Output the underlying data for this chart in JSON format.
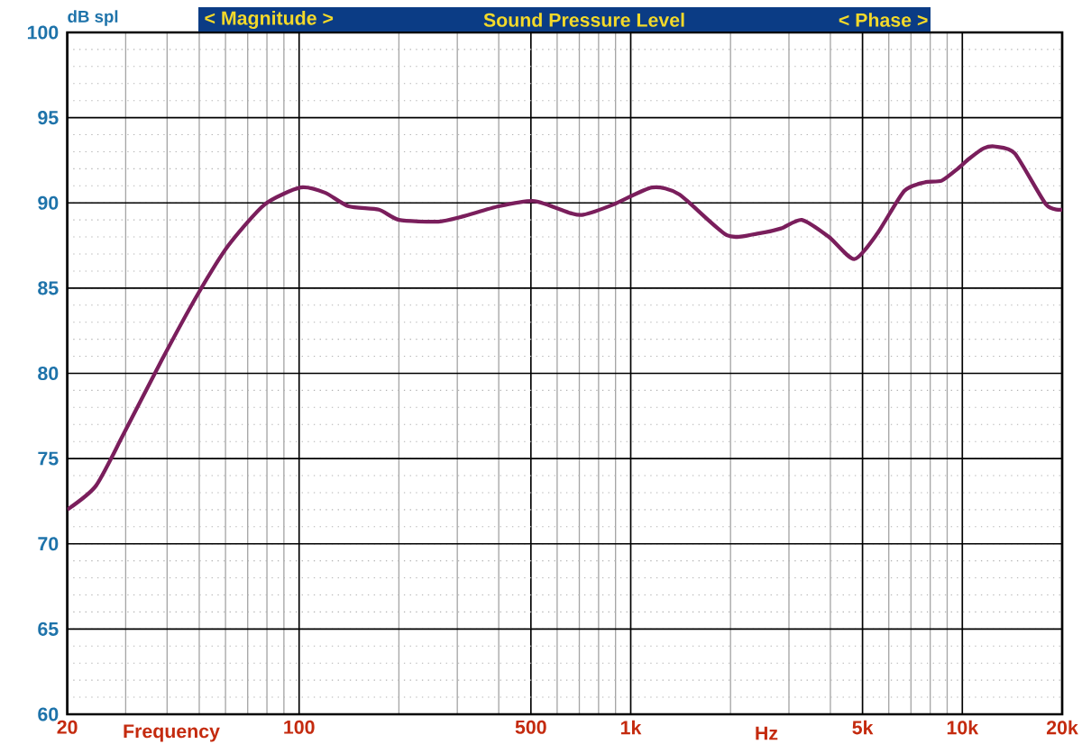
{
  "chart_data": {
    "type": "line",
    "title": "Sound Pressure Level",
    "ylabel": "dB spl",
    "xlabel": "Frequency",
    "annotations": [
      "< Magnitude >",
      "< Phase >",
      "Hz"
    ],
    "x": [
      20,
      24.4,
      29.5,
      38.6,
      49.7,
      61.2,
      78.7,
      101,
      119.6,
      141,
      174,
      200,
      263,
      311,
      400,
      513,
      658,
      719,
      886,
      1160,
      1400,
      1950,
      2410,
      2840,
      3280,
      3960,
      4720,
      5540,
      6680,
      7700,
      8660,
      9680,
      10500,
      11600,
      12600,
      14400,
      17900,
      20000
    ],
    "series": [
      {
        "color": "#7a1e5c",
        "values": [
          72.0,
          73.4,
          76.4,
          80.8,
          84.7,
          87.5,
          89.9,
          90.9,
          90.6,
          89.8,
          89.6,
          89.0,
          88.9,
          89.2,
          89.8,
          90.1,
          89.4,
          89.3,
          89.9,
          90.9,
          90.5,
          88.1,
          88.2,
          88.5,
          89.0,
          88.0,
          86.7,
          88.2,
          90.7,
          91.2,
          91.3,
          92.0,
          92.6,
          93.2,
          93.3,
          92.9,
          89.9,
          89.6
        ]
      }
    ],
    "log": "x",
    "xlim": [
      20,
      20000
    ],
    "ylim": [
      60,
      100
    ],
    "xticks": [
      20,
      100,
      500,
      {
        "value": 1000,
        "label": "1k"
      },
      {
        "value": 5000,
        "label": "5k"
      },
      {
        "value": 10000,
        "label": "10k"
      },
      {
        "value": 20000,
        "label": "20k"
      }
    ],
    "yticks": [
      60,
      65,
      70,
      75,
      80,
      85,
      90,
      95,
      100
    ],
    "grid": true
  }
}
